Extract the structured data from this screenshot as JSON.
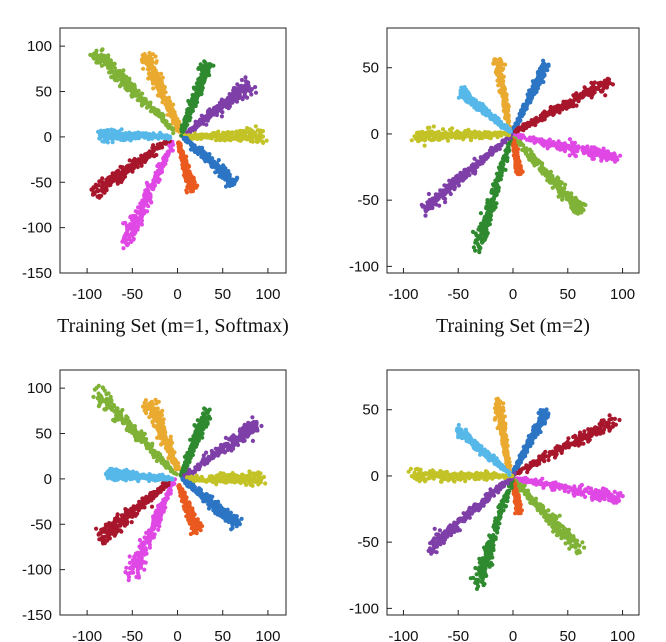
{
  "chart_data": [
    {
      "type": "scatter",
      "title": "",
      "caption": "Training Set (m=1, Softmax)",
      "xlim": [
        -130,
        120
      ],
      "ylim": [
        -150,
        120
      ],
      "x_ticks": [
        -100,
        -50,
        0,
        50,
        100
      ],
      "y_ticks": [
        -150,
        -100,
        -50,
        0,
        50,
        100
      ],
      "grid": false,
      "series": [
        {
          "color": "#7fb236",
          "start": [
            -5,
            8
          ],
          "end": [
            -90,
            92
          ],
          "spread": 6
        },
        {
          "color": "#eaaa30",
          "start": [
            2,
            8
          ],
          "end": [
            -35,
            88
          ],
          "spread": 6
        },
        {
          "color": "#2f8a2f",
          "start": [
            5,
            5
          ],
          "end": [
            33,
            80
          ],
          "spread": 5
        },
        {
          "color": "#7f3fa8",
          "start": [
            8,
            2
          ],
          "end": [
            80,
            58
          ],
          "spread": 6
        },
        {
          "color": "#c3c226",
          "start": [
            10,
            0
          ],
          "end": [
            95,
            2
          ],
          "spread": 6
        },
        {
          "color": "#2c75c4",
          "start": [
            8,
            -2
          ],
          "end": [
            62,
            -50
          ],
          "spread": 5
        },
        {
          "color": "#ea5a1f",
          "start": [
            2,
            -8
          ],
          "end": [
            16,
            -58
          ],
          "spread": 4
        },
        {
          "color": "#e048e6",
          "start": [
            -5,
            -5
          ],
          "end": [
            -58,
            -118
          ],
          "spread": 6
        },
        {
          "color": "#a8162c",
          "start": [
            -8,
            -2
          ],
          "end": [
            -92,
            -62
          ],
          "spread": 7
        },
        {
          "color": "#56b8e8",
          "start": [
            -8,
            0
          ],
          "end": [
            -85,
            2
          ],
          "spread": 5
        }
      ]
    },
    {
      "type": "scatter",
      "title": "",
      "caption": "Training Set (m=2)",
      "xlim": [
        -115,
        115
      ],
      "ylim": [
        -105,
        80
      ],
      "x_ticks": [
        -100,
        -50,
        0,
        50,
        100
      ],
      "y_ticks": [
        -100,
        -50,
        0,
        50
      ],
      "grid": false,
      "series": [
        {
          "color": "#eaaa30",
          "start": [
            -3,
            2
          ],
          "end": [
            -14,
            56
          ],
          "spread": 3
        },
        {
          "color": "#2c75c4",
          "start": [
            0,
            2
          ],
          "end": [
            30,
            52
          ],
          "spread": 3
        },
        {
          "color": "#a8162c",
          "start": [
            3,
            2
          ],
          "end": [
            88,
            40
          ],
          "spread": 4
        },
        {
          "color": "#e048e6",
          "start": [
            3,
            -2
          ],
          "end": [
            96,
            -18
          ],
          "spread": 4
        },
        {
          "color": "#7fb236",
          "start": [
            2,
            -4
          ],
          "end": [
            62,
            -58
          ],
          "spread": 4
        },
        {
          "color": "#ea5a1f",
          "start": [
            0,
            -4
          ],
          "end": [
            6,
            -30
          ],
          "spread": 2
        },
        {
          "color": "#2f8a2f",
          "start": [
            -2,
            -4
          ],
          "end": [
            -32,
            -86
          ],
          "spread": 4
        },
        {
          "color": "#7f3fa8",
          "start": [
            -3,
            -2
          ],
          "end": [
            -80,
            -56
          ],
          "spread": 4
        },
        {
          "color": "#c3c226",
          "start": [
            -4,
            0
          ],
          "end": [
            -90,
            -2
          ],
          "spread": 4
        },
        {
          "color": "#56b8e8",
          "start": [
            -3,
            2
          ],
          "end": [
            -48,
            32
          ],
          "spread": 3
        }
      ]
    },
    {
      "type": "scatter",
      "title": "",
      "caption": "",
      "xlim": [
        -130,
        120
      ],
      "ylim": [
        -150,
        120
      ],
      "x_ticks": [
        -100,
        -50,
        0,
        50,
        100
      ],
      "y_ticks": [
        -150,
        -100,
        -50,
        0,
        50,
        100
      ],
      "grid": false,
      "series": [
        {
          "color": "#7fb236",
          "start": [
            -5,
            8
          ],
          "end": [
            -88,
            95
          ],
          "spread": 6
        },
        {
          "color": "#eaaa30",
          "start": [
            2,
            8
          ],
          "end": [
            -32,
            85
          ],
          "spread": 6
        },
        {
          "color": "#2f8a2f",
          "start": [
            5,
            5
          ],
          "end": [
            33,
            75
          ],
          "spread": 5
        },
        {
          "color": "#7f3fa8",
          "start": [
            8,
            2
          ],
          "end": [
            90,
            62
          ],
          "spread": 6
        },
        {
          "color": "#c3c226",
          "start": [
            10,
            0
          ],
          "end": [
            95,
            0
          ],
          "spread": 6
        },
        {
          "color": "#2c75c4",
          "start": [
            8,
            -2
          ],
          "end": [
            65,
            -50
          ],
          "spread": 5
        },
        {
          "color": "#ea5a1f",
          "start": [
            2,
            -8
          ],
          "end": [
            22,
            -58
          ],
          "spread": 4
        },
        {
          "color": "#e048e6",
          "start": [
            -5,
            -5
          ],
          "end": [
            -52,
            -108
          ],
          "spread": 6
        },
        {
          "color": "#a8162c",
          "start": [
            -8,
            -2
          ],
          "end": [
            -85,
            -65
          ],
          "spread": 7
        },
        {
          "color": "#56b8e8",
          "start": [
            -8,
            0
          ],
          "end": [
            -78,
            5
          ],
          "spread": 5
        }
      ]
    },
    {
      "type": "scatter",
      "title": "",
      "caption": "",
      "xlim": [
        -115,
        115
      ],
      "ylim": [
        -105,
        80
      ],
      "x_ticks": [
        -100,
        -50,
        0,
        50,
        100
      ],
      "y_ticks": [
        -100,
        -50,
        0,
        50
      ],
      "grid": false,
      "series": [
        {
          "color": "#eaaa30",
          "start": [
            -3,
            2
          ],
          "end": [
            -14,
            56
          ],
          "spread": 3
        },
        {
          "color": "#2c75c4",
          "start": [
            0,
            2
          ],
          "end": [
            30,
            48
          ],
          "spread": 3
        },
        {
          "color": "#a8162c",
          "start": [
            3,
            2
          ],
          "end": [
            93,
            42
          ],
          "spread": 4
        },
        {
          "color": "#e048e6",
          "start": [
            3,
            -2
          ],
          "end": [
            96,
            -17
          ],
          "spread": 4
        },
        {
          "color": "#7fb236",
          "start": [
            2,
            -4
          ],
          "end": [
            60,
            -55
          ],
          "spread": 4
        },
        {
          "color": "#ea5a1f",
          "start": [
            0,
            -4
          ],
          "end": [
            6,
            -28
          ],
          "spread": 2
        },
        {
          "color": "#2f8a2f",
          "start": [
            -2,
            -4
          ],
          "end": [
            -32,
            -82
          ],
          "spread": 4
        },
        {
          "color": "#7f3fa8",
          "start": [
            -3,
            -2
          ],
          "end": [
            -78,
            -56
          ],
          "spread": 4
        },
        {
          "color": "#c3c226",
          "start": [
            -4,
            0
          ],
          "end": [
            -92,
            0
          ],
          "spread": 4
        },
        {
          "color": "#56b8e8",
          "start": [
            -3,
            2
          ],
          "end": [
            -50,
            34
          ],
          "spread": 3
        }
      ]
    }
  ]
}
